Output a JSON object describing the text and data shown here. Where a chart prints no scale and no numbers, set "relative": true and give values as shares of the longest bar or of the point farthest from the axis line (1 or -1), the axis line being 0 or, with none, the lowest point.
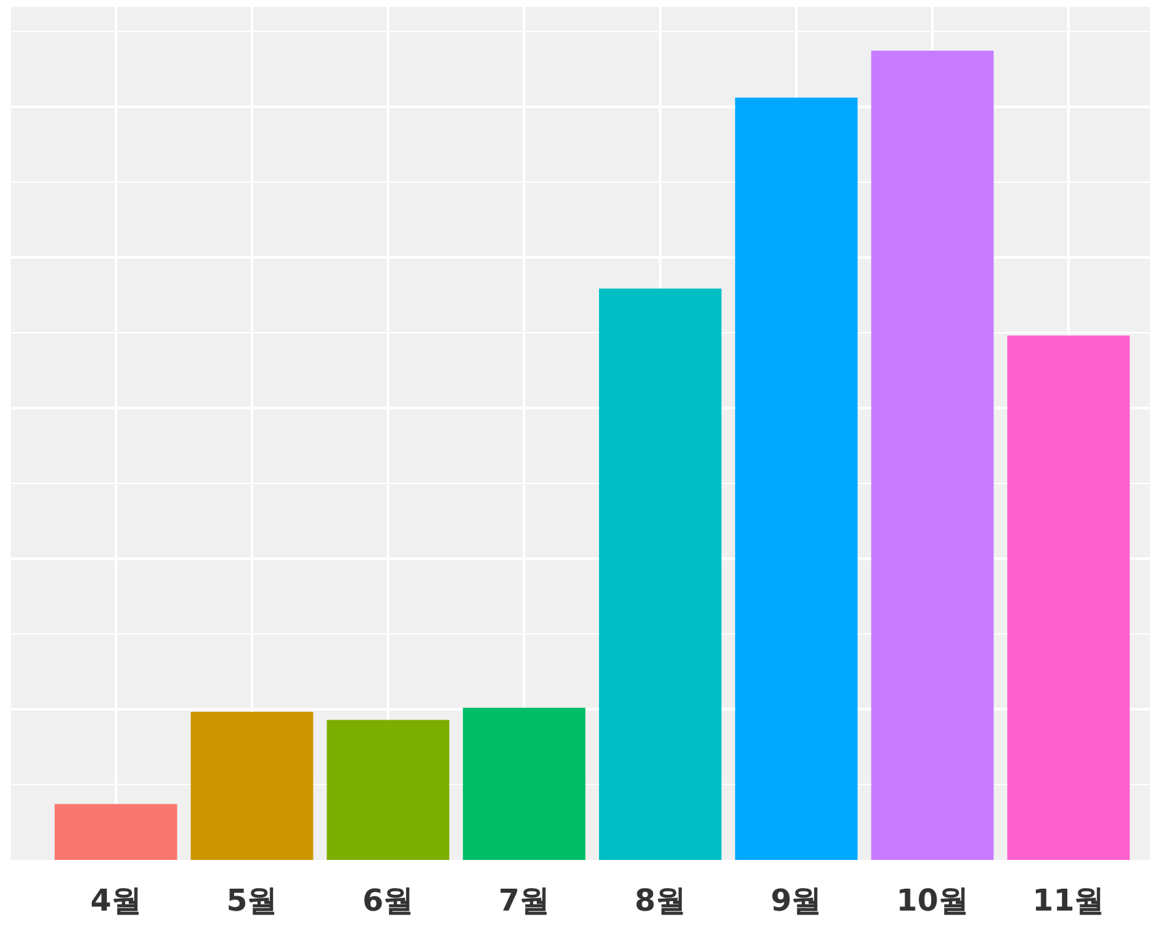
{
  "chart_data": {
    "type": "bar",
    "relative": true,
    "grid": true,
    "categories": [
      "4월",
      "5월",
      "6월",
      "7월",
      "8월",
      "9월",
      "10월",
      "11월"
    ],
    "values": [
      0.069,
      0.183,
      0.173,
      0.188,
      0.706,
      0.942,
      1,
      0.648
    ],
    "colors": [
      "#f8766d",
      "#cd9600",
      "#7cae00",
      "#00be67",
      "#00bfc4",
      "#00a9ff",
      "#c77cff",
      "#ff61cc"
    ]
  }
}
